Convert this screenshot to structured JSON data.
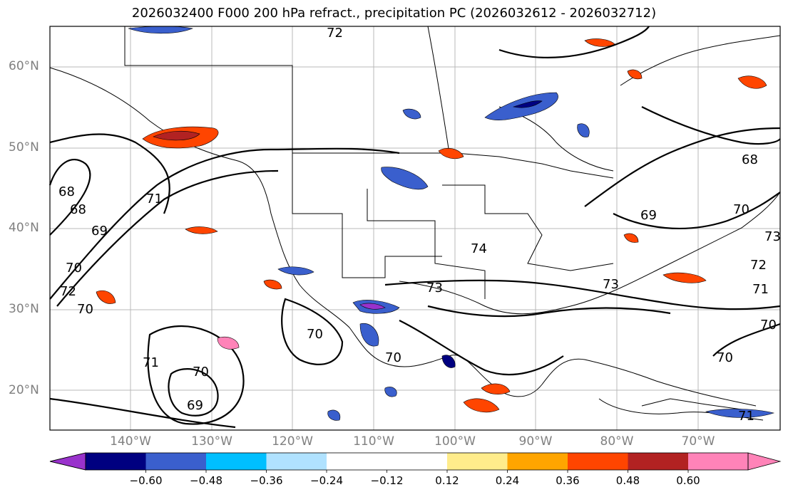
{
  "title": "2026032400 F000 200 hPa refract., precipitation PC (2026032612 - 2026032712)",
  "map": {
    "lat_labels": [
      "60°N",
      "50°N",
      "40°N",
      "30°N",
      "20°N"
    ],
    "lon_labels": [
      "140°W",
      "130°W",
      "120°W",
      "110°W",
      "100°W",
      "90°W",
      "80°W",
      "70°W"
    ],
    "contour_labels": [
      "72",
      "68",
      "68",
      "71",
      "69",
      "70",
      "72",
      "70",
      "70",
      "73",
      "74",
      "73",
      "70",
      "71",
      "70",
      "69",
      "69",
      "68",
      "70",
      "73",
      "72",
      "71",
      "70",
      "70",
      "71"
    ]
  },
  "colorbar": {
    "ticks": [
      "−0.60",
      "−0.48",
      "−0.36",
      "−0.24",
      "−0.12",
      "0.12",
      "0.24",
      "0.36",
      "0.48",
      "0.60"
    ],
    "colors": [
      "#9932cc",
      "#000080",
      "#3a5fcd",
      "#00bfff",
      "#b0e2ff",
      "#ffffff",
      "#ffec8b",
      "#ffa500",
      "#ff4500",
      "#b22222",
      "#ff83b8"
    ]
  }
}
